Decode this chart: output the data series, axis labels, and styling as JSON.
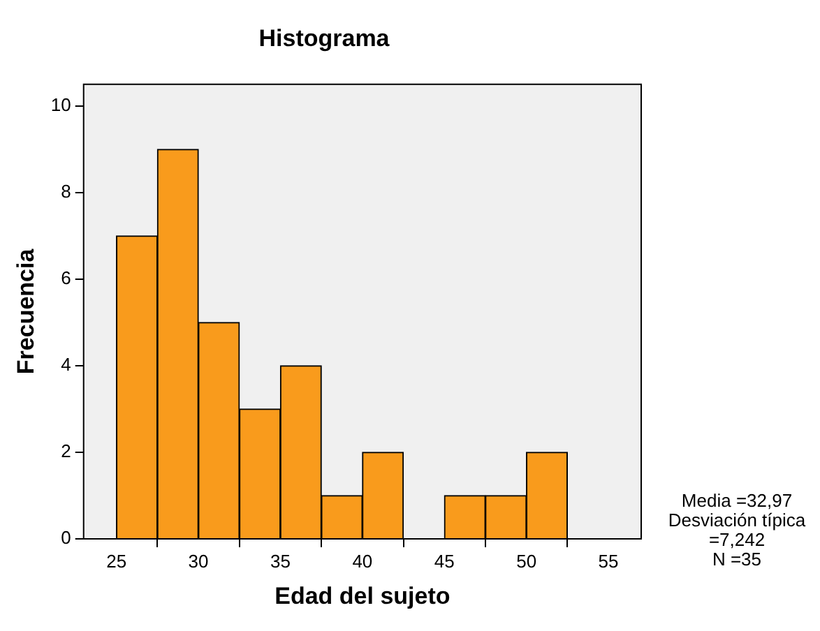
{
  "chart_data": {
    "type": "histogram",
    "title": "Histograma",
    "xlabel": "Edad del sujeto",
    "ylabel": "Frecuencia",
    "bins": [
      25,
      27.5,
      30,
      32.5,
      35,
      37.5,
      40,
      42.5,
      45,
      47.5,
      50,
      52.5,
      55
    ],
    "values": [
      7,
      9,
      5,
      3,
      4,
      1,
      2,
      0,
      1,
      1,
      2,
      0
    ],
    "color": "#f99b1c",
    "xlim": [
      23,
      57
    ],
    "xticks": [
      25,
      30,
      35,
      40,
      45,
      50,
      55
    ],
    "ylim": [
      0,
      10.5
    ],
    "yticks": [
      0,
      2,
      4,
      6,
      8,
      10
    ],
    "annotations": [
      "Media =32,97",
      "Desviación típica =7,242",
      "N =35"
    ]
  }
}
